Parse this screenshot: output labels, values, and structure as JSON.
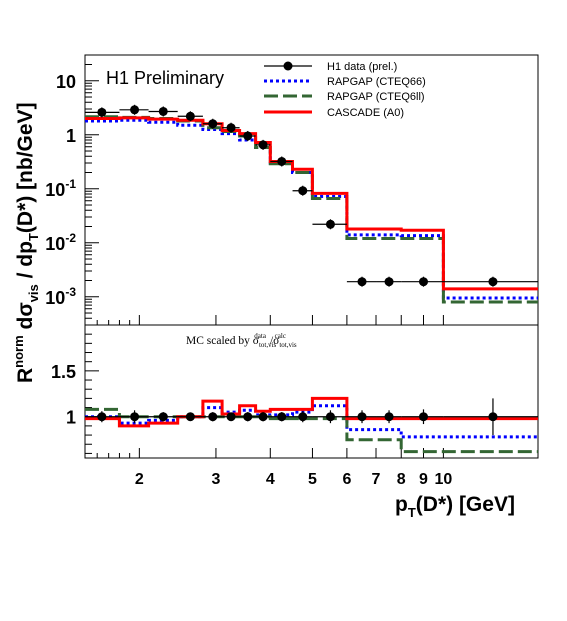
{
  "chart_data": [
    {
      "type": "line",
      "panel": "top",
      "title": "",
      "annotation": "H1 Preliminary",
      "ylabel": "R^norm dσ_vis / dp_T(D*) [nb/GeV]",
      "y_scale": "log",
      "ylim": [
        0.0003,
        30
      ],
      "xlim": [
        1.5,
        16.5
      ],
      "x_scale": "log",
      "legend_position": "top-right",
      "y_tick_labels": [
        "10",
        "1",
        "10^-1",
        "10^-2",
        "10^-3"
      ],
      "bin_edges": [
        1.5,
        1.8,
        2.1,
        2.45,
        2.8,
        3.1,
        3.4,
        3.7,
        4.0,
        4.5,
        5.0,
        6.0,
        7.0,
        8.0,
        10.0,
        16.5
      ],
      "series": [
        {
          "name": "H1 data (prel.)",
          "style": "points",
          "color": "#000000",
          "x": [
            1.64,
            1.95,
            2.27,
            2.62,
            2.95,
            3.25,
            3.55,
            3.85,
            4.25,
            4.75,
            5.5,
            6.5,
            7.5,
            9.0,
            13.0
          ],
          "values": [
            2.6,
            2.9,
            2.7,
            2.2,
            1.6,
            1.35,
            0.95,
            0.65,
            0.32,
            0.092,
            0.022,
            0.0019,
            0.0019,
            0.0019,
            0.0019
          ]
        },
        {
          "name": "RAPGAP (CTEQ66)",
          "style": "dotted-step",
          "color": "#0000ff",
          "values": [
            1.8,
            1.85,
            1.7,
            1.5,
            1.25,
            1.05,
            0.8,
            0.58,
            0.3,
            0.2,
            0.072,
            0.014,
            0.014,
            0.0136,
            0.00095
          ]
        },
        {
          "name": "RAPGAP (CTEQ6ll)",
          "style": "dashed-step",
          "color": "#336633",
          "values": [
            2.15,
            2.1,
            2.0,
            1.8,
            1.35,
            1.15,
            0.95,
            0.58,
            0.29,
            0.2,
            0.066,
            0.012,
            0.012,
            0.012,
            0.0008
          ]
        },
        {
          "name": "CASCADE (A0)",
          "style": "solid-step",
          "color": "#ff0000",
          "values": [
            2.0,
            2.05,
            1.95,
            1.85,
            1.6,
            1.2,
            1.05,
            0.72,
            0.32,
            0.23,
            0.082,
            0.018,
            0.018,
            0.017,
            0.0014
          ]
        }
      ]
    },
    {
      "type": "line",
      "panel": "bottom",
      "annotation": "MC scaled by σ^data_tot,vis / σ^calc_tot,vis",
      "ylim": [
        0.55,
        2.0
      ],
      "xlim": [
        1.5,
        16.5
      ],
      "x_scale": "log",
      "y_tick_labels": [
        "1.5",
        "1"
      ],
      "xlabel": "p_T(D*) [GeV]",
      "x_tick_labels": [
        "2",
        "3",
        "4",
        "5",
        "6",
        "7",
        "8",
        "9",
        "10"
      ],
      "bin_edges": [
        1.5,
        1.8,
        2.1,
        2.45,
        2.8,
        3.1,
        3.4,
        3.7,
        4.0,
        4.5,
        5.0,
        6.0,
        7.0,
        8.0,
        10.0,
        16.5
      ],
      "series": [
        {
          "name": "H1 data (prel.)",
          "style": "points",
          "color": "#000000",
          "x": [
            1.64,
            1.95,
            2.27,
            2.62,
            2.95,
            3.25,
            3.55,
            3.85,
            4.25,
            4.75,
            5.5,
            6.5,
            7.5,
            9.0,
            13.0
          ],
          "values": [
            1.0,
            1.0,
            1.0,
            1.0,
            1.0,
            1.0,
            1.0,
            1.0,
            1.0,
            1.0,
            1.0,
            1.0,
            1.0,
            1.0,
            1.0
          ],
          "errors": [
            0.06,
            0.07,
            0.05,
            0.04,
            0.05,
            0.04,
            0.05,
            0.05,
            0.05,
            0.06,
            0.07,
            0.07,
            0.07,
            0.08,
            0.2
          ]
        },
        {
          "name": "RAPGAP (CTEQ66)",
          "style": "dotted-step",
          "color": "#0000ff",
          "values": [
            1.0,
            0.93,
            0.96,
            1.0,
            1.1,
            1.05,
            1.07,
            1.02,
            1.02,
            1.05,
            1.12,
            0.86,
            0.86,
            0.78,
            0.78
          ]
        },
        {
          "name": "RAPGAP (CTEQ6ll)",
          "style": "dashed-step",
          "color": "#336633",
          "values": [
            1.08,
            1.0,
            1.0,
            1.0,
            1.0,
            1.0,
            1.0,
            1.0,
            0.98,
            0.98,
            0.98,
            0.75,
            0.75,
            0.62,
            0.62
          ]
        },
        {
          "name": "CASCADE (A0)",
          "style": "solid-step",
          "color": "#ff0000",
          "values": [
            0.98,
            0.9,
            0.93,
            1.0,
            1.17,
            1.03,
            1.12,
            1.06,
            1.08,
            1.08,
            1.2,
            0.98,
            0.98,
            0.98,
            0.98
          ]
        }
      ]
    }
  ]
}
